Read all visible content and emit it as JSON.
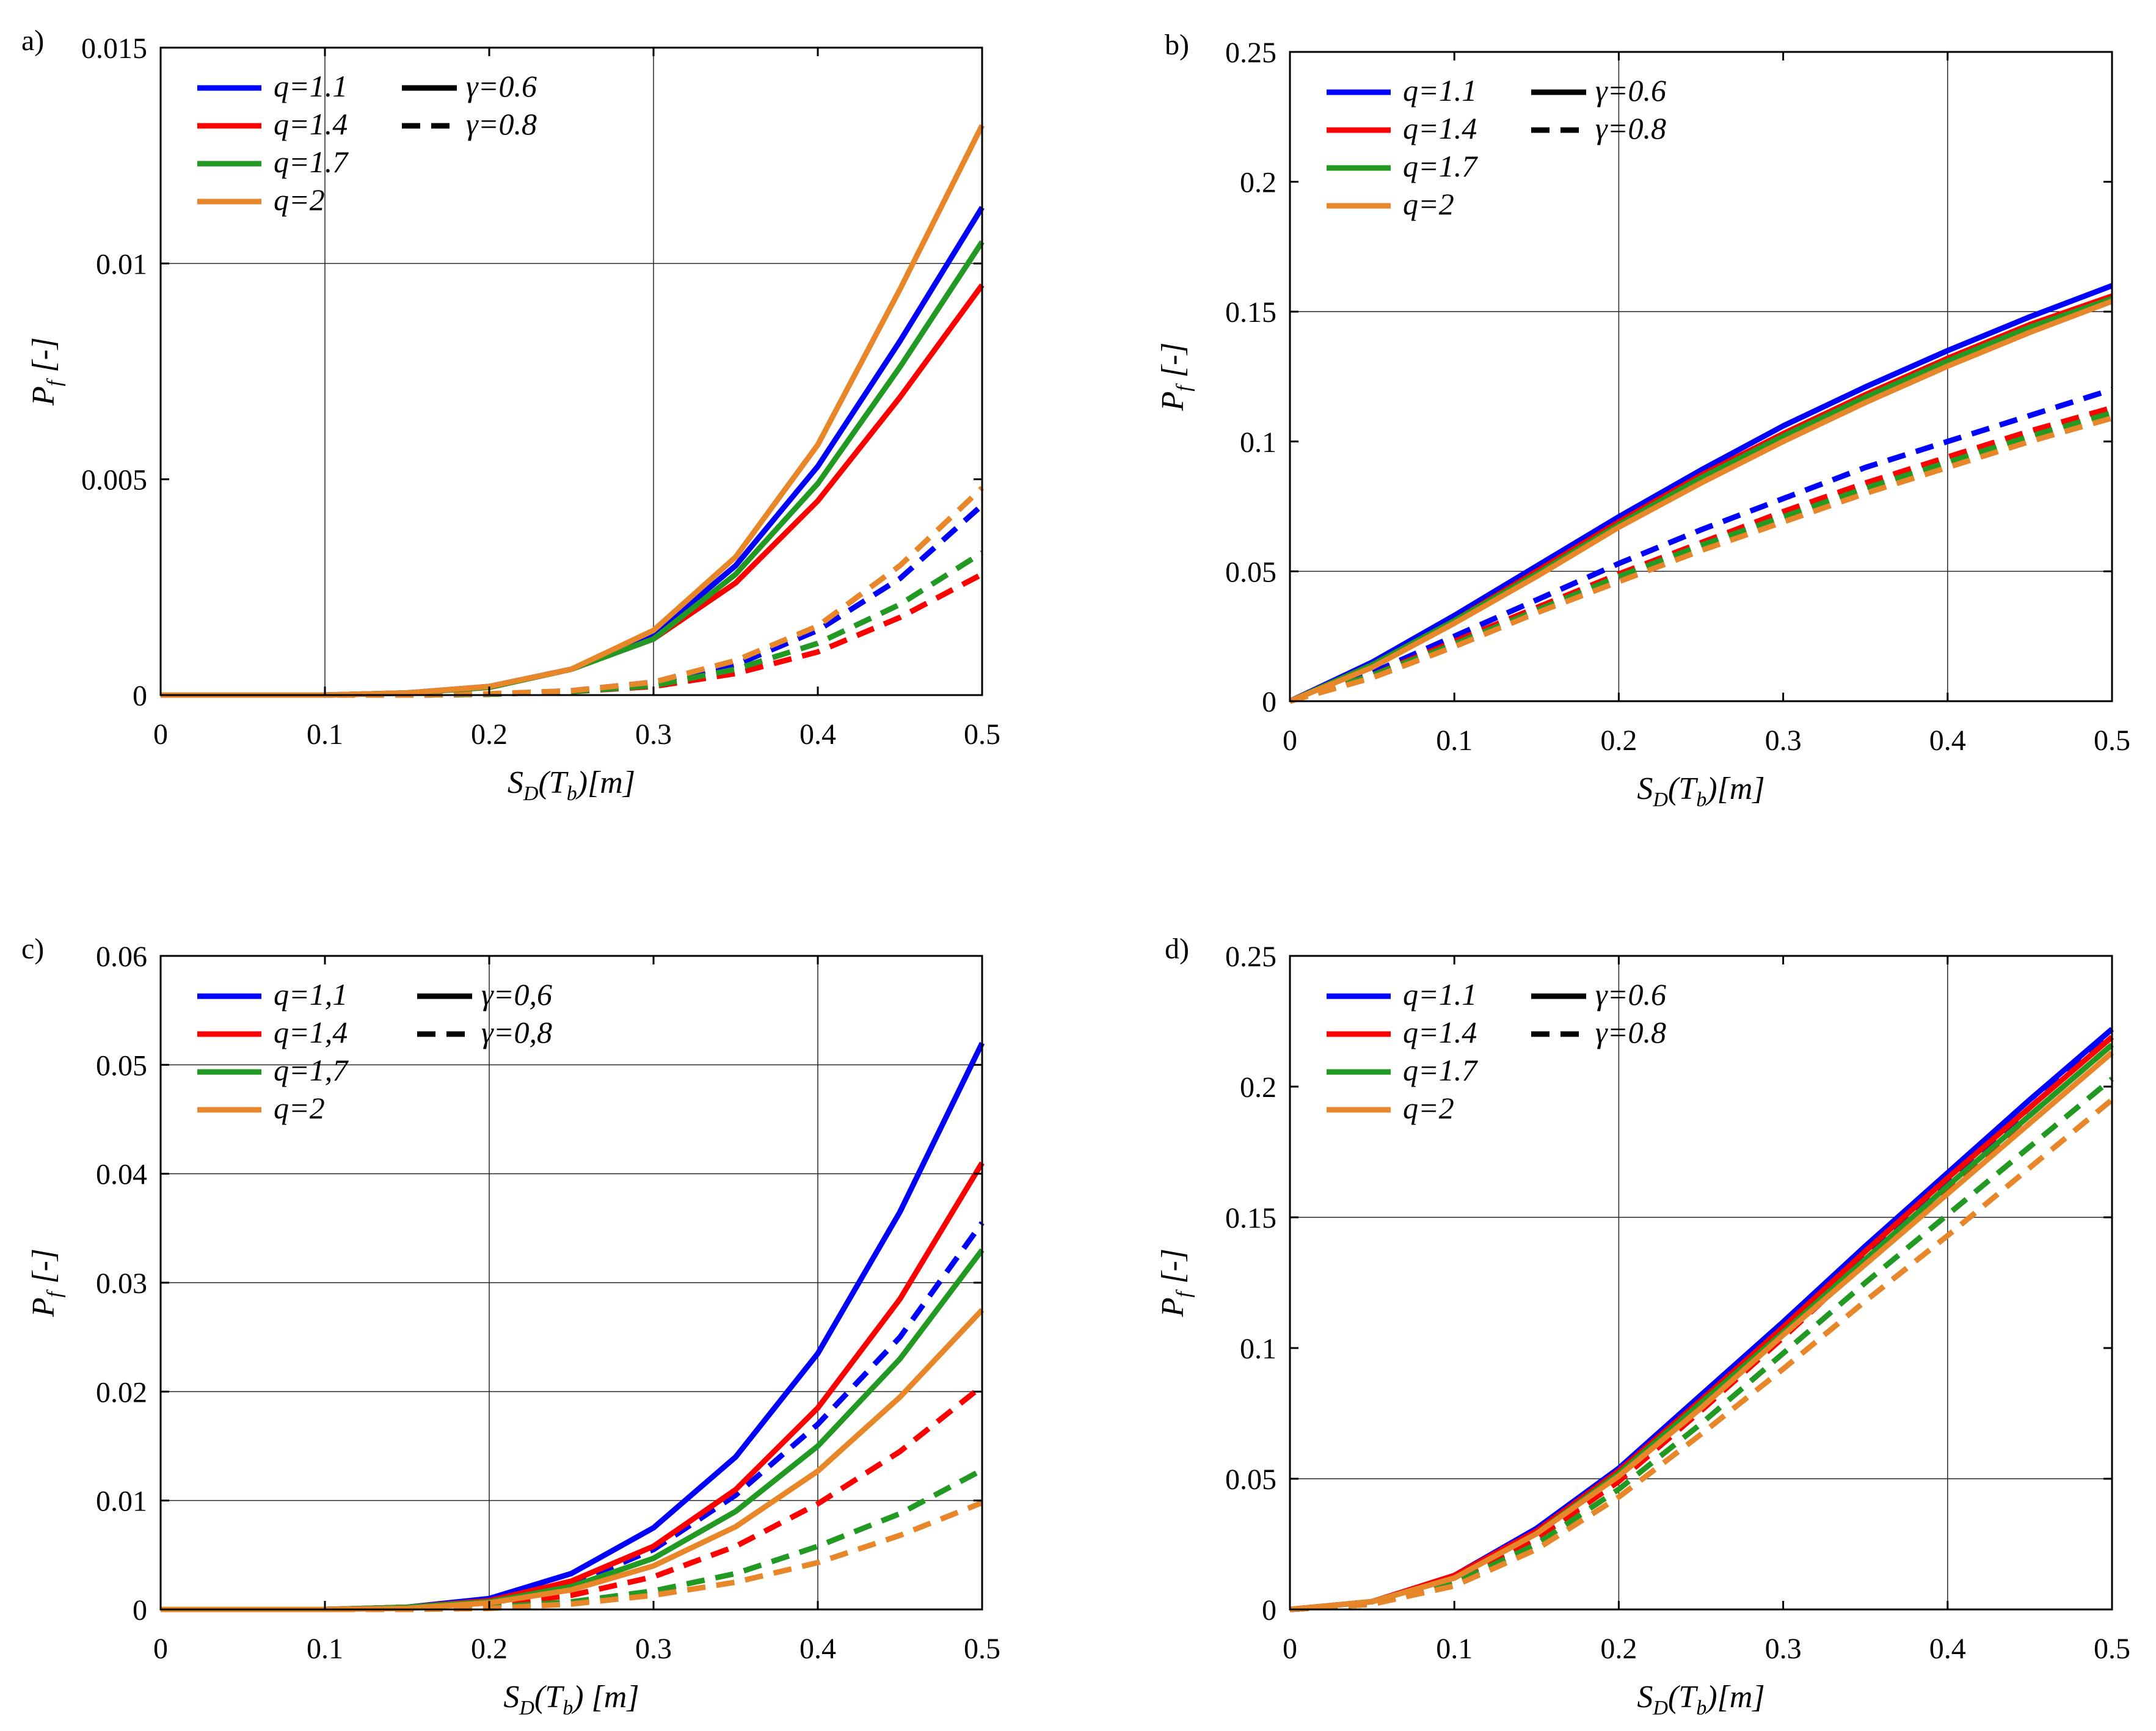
{
  "chart_data": [
    {
      "type": "line",
      "panel_label": "a)",
      "xlabel_main": "S",
      "xlabel_sub": "D",
      "xlabel_rest": "(T",
      "xlabel_sub2": "b",
      "xlabel_end": ")[m]",
      "ylabel_main": "P",
      "ylabel_sub": "f",
      "ylabel_end": "[-]",
      "xlim": [
        0,
        0.5
      ],
      "ylim": [
        0,
        0.015
      ],
      "xticks": [
        0,
        0.1,
        0.2,
        0.3,
        0.4,
        0.5
      ],
      "xtick_labels": [
        "0",
        "0.1",
        "0.2",
        "0.3",
        "0.4",
        "0.5"
      ],
      "yticks": [
        0,
        0.005,
        0.01,
        0.015
      ],
      "ytick_labels": [
        "0",
        "0.005",
        "0.01",
        "0.015"
      ],
      "xgrid": [
        0.1,
        0.3
      ],
      "ygrid": [
        0.01
      ],
      "legend_q": [
        "q=1.1",
        "q=1.4",
        "q=1.7",
        "q=2"
      ],
      "legend_g": [
        "γ=0.6",
        "γ=0.8"
      ],
      "x": [
        0,
        0.05,
        0.1,
        0.15,
        0.2,
        0.25,
        0.3,
        0.35,
        0.4,
        0.45,
        0.5
      ],
      "series": [
        {
          "name": "q=1.1 γ=0.6",
          "color": "#0000ff",
          "dash": false,
          "values": [
            0,
            0,
            0,
            5e-05,
            0.0002,
            0.0006,
            0.0014,
            0.003,
            0.0053,
            0.0082,
            0.0113
          ]
        },
        {
          "name": "q=1.4 γ=0.6",
          "color": "#ff0000",
          "dash": false,
          "values": [
            0,
            0,
            0,
            5e-05,
            0.00018,
            0.0006,
            0.0013,
            0.0026,
            0.0045,
            0.0069,
            0.0095
          ]
        },
        {
          "name": "q=1.7 γ=0.6",
          "color": "#229922",
          "dash": false,
          "values": [
            0,
            0,
            0,
            5e-05,
            0.00018,
            0.0006,
            0.0013,
            0.0028,
            0.0049,
            0.0076,
            0.0105
          ]
        },
        {
          "name": "q=2 γ=0.6",
          "color": "#e8862a",
          "dash": false,
          "values": [
            0,
            0,
            0,
            5e-05,
            0.0002,
            0.0006,
            0.0015,
            0.0032,
            0.0058,
            0.0094,
            0.0132
          ]
        },
        {
          "name": "q=1.1 γ=0.8",
          "color": "#0000ff",
          "dash": true,
          "values": [
            0,
            0,
            0,
            0,
            2e-05,
            0.0001,
            0.0003,
            0.0007,
            0.0015,
            0.0027,
            0.0044
          ]
        },
        {
          "name": "q=1.4 γ=0.8",
          "color": "#ff0000",
          "dash": true,
          "values": [
            0,
            0,
            0,
            0,
            2e-05,
            8e-05,
            0.0002,
            0.0005,
            0.001,
            0.0018,
            0.0028
          ]
        },
        {
          "name": "q=1.7 γ=0.8",
          "color": "#229922",
          "dash": true,
          "values": [
            0,
            0,
            0,
            0,
            2e-05,
            8e-05,
            0.00022,
            0.0006,
            0.0012,
            0.0021,
            0.0033
          ]
        },
        {
          "name": "q=2 γ=0.8",
          "color": "#e8862a",
          "dash": true,
          "values": [
            0,
            0,
            0,
            0,
            3e-05,
            0.0001,
            0.0003,
            0.0008,
            0.0016,
            0.003,
            0.0048
          ]
        }
      ]
    },
    {
      "type": "line",
      "panel_label": "b)",
      "xlabel_main": "S",
      "xlabel_sub": "D",
      "xlabel_rest": "(T",
      "xlabel_sub2": "b",
      "xlabel_end": ")[m]",
      "ylabel_main": "P",
      "ylabel_sub": "f",
      "ylabel_end": "[-]",
      "xlim": [
        0,
        0.5
      ],
      "ylim": [
        0,
        0.25
      ],
      "xticks": [
        0,
        0.1,
        0.2,
        0.3,
        0.4,
        0.5
      ],
      "xtick_labels": [
        "0",
        "0.1",
        "0.2",
        "0.3",
        "0.4",
        "0.5"
      ],
      "yticks": [
        0,
        0.05,
        0.1,
        0.15,
        0.2,
        0.25
      ],
      "ytick_labels": [
        "0",
        "0.05",
        "0.1",
        "0.15",
        "0.2",
        "0.25"
      ],
      "xgrid": [
        0.2,
        0.4
      ],
      "ygrid": [
        0.05,
        0.15
      ],
      "legend_q": [
        "q=1.1",
        "q=1.4",
        "q=1.7",
        "q=2"
      ],
      "legend_g": [
        "γ=0.6",
        "γ=0.8"
      ],
      "x": [
        0,
        0.05,
        0.1,
        0.15,
        0.2,
        0.25,
        0.3,
        0.35,
        0.4,
        0.45,
        0.5
      ],
      "series": [
        {
          "name": "q=1.1 γ=0.6",
          "color": "#0000ff",
          "dash": false,
          "values": [
            0,
            0.015,
            0.033,
            0.052,
            0.071,
            0.089,
            0.106,
            0.121,
            0.135,
            0.148,
            0.16
          ]
        },
        {
          "name": "q=1.4 γ=0.6",
          "color": "#ff0000",
          "dash": false,
          "values": [
            0,
            0.014,
            0.031,
            0.05,
            0.069,
            0.087,
            0.103,
            0.118,
            0.132,
            0.145,
            0.156
          ]
        },
        {
          "name": "q=1.7 γ=0.6",
          "color": "#229922",
          "dash": false,
          "values": [
            0,
            0.014,
            0.031,
            0.049,
            0.068,
            0.086,
            0.102,
            0.117,
            0.131,
            0.144,
            0.155
          ]
        },
        {
          "name": "q=2 γ=0.6",
          "color": "#e8862a",
          "dash": false,
          "values": [
            0,
            0.013,
            0.03,
            0.048,
            0.067,
            0.084,
            0.1,
            0.115,
            0.129,
            0.142,
            0.154
          ]
        },
        {
          "name": "q=1.1 γ=0.8",
          "color": "#0000ff",
          "dash": true,
          "values": [
            0,
            0.011,
            0.025,
            0.039,
            0.053,
            0.066,
            0.078,
            0.09,
            0.1,
            0.11,
            0.12
          ]
        },
        {
          "name": "q=1.4 γ=0.8",
          "color": "#ff0000",
          "dash": true,
          "values": [
            0,
            0.01,
            0.023,
            0.036,
            0.049,
            0.061,
            0.073,
            0.084,
            0.094,
            0.104,
            0.113
          ]
        },
        {
          "name": "q=1.7 γ=0.8",
          "color": "#229922",
          "dash": true,
          "values": [
            0,
            0.01,
            0.022,
            0.035,
            0.048,
            0.06,
            0.071,
            0.082,
            0.092,
            0.102,
            0.111
          ]
        },
        {
          "name": "q=2 γ=0.8",
          "color": "#e8862a",
          "dash": true,
          "values": [
            0,
            0.009,
            0.021,
            0.034,
            0.046,
            0.058,
            0.069,
            0.08,
            0.09,
            0.1,
            0.109
          ]
        }
      ]
    },
    {
      "type": "line",
      "panel_label": "c)",
      "xlabel_main": "S",
      "xlabel_sub": "D",
      "xlabel_rest": "(T",
      "xlabel_sub2": "b",
      "xlabel_end": ") [m]",
      "ylabel_main": "P",
      "ylabel_sub": "f",
      "ylabel_end": "[-]",
      "xlim": [
        0,
        0.5
      ],
      "ylim": [
        0,
        0.06
      ],
      "xticks": [
        0,
        0.1,
        0.2,
        0.3,
        0.4,
        0.5
      ],
      "xtick_labels": [
        "0",
        "0.1",
        "0.2",
        "0.3",
        "0.4",
        "0.5"
      ],
      "yticks": [
        0,
        0.01,
        0.02,
        0.03,
        0.04,
        0.05,
        0.06
      ],
      "ytick_labels": [
        "0",
        "0.01",
        "0.02",
        "0.03",
        "0.04",
        "0.05",
        "0.06"
      ],
      "xgrid": [
        0.2,
        0.4
      ],
      "ygrid": [
        0.01,
        0.02,
        0.03,
        0.04,
        0.05
      ],
      "legend_q": [
        "q=1,1",
        "q=1,4",
        "q=1,7",
        "q=2"
      ],
      "legend_g": [
        "γ=0,6",
        "γ=0,8"
      ],
      "x": [
        0,
        0.05,
        0.1,
        0.15,
        0.2,
        0.25,
        0.3,
        0.35,
        0.4,
        0.45,
        0.5
      ],
      "series": [
        {
          "name": "q=1,1 γ=0,6",
          "color": "#0000ff",
          "dash": false,
          "values": [
            0,
            0,
            0,
            0.0002,
            0.001,
            0.0033,
            0.0075,
            0.014,
            0.0235,
            0.0365,
            0.052
          ]
        },
        {
          "name": "q=1,4 γ=0,6",
          "color": "#ff0000",
          "dash": false,
          "values": [
            0,
            0,
            0,
            0.0002,
            0.0008,
            0.0026,
            0.0058,
            0.011,
            0.0185,
            0.0285,
            0.041
          ]
        },
        {
          "name": "q=1,7 γ=0,6",
          "color": "#229922",
          "dash": false,
          "values": [
            0,
            0,
            0,
            0.0002,
            0.0007,
            0.0021,
            0.0047,
            0.009,
            0.015,
            0.023,
            0.033
          ]
        },
        {
          "name": "q=2 γ=0,6",
          "color": "#e8862a",
          "dash": false,
          "values": [
            0,
            0,
            0,
            0.0001,
            0.0006,
            0.0018,
            0.004,
            0.0076,
            0.0127,
            0.0195,
            0.0275
          ]
        },
        {
          "name": "q=1,1 γ=0,8",
          "color": "#0000ff",
          "dash": true,
          "values": [
            0,
            0,
            0,
            0.0001,
            0.0007,
            0.0023,
            0.0055,
            0.0105,
            0.017,
            0.025,
            0.0355
          ]
        },
        {
          "name": "q=1,4 γ=0,8",
          "color": "#ff0000",
          "dash": true,
          "values": [
            0,
            0,
            0,
            0.0001,
            0.0004,
            0.0013,
            0.003,
            0.0058,
            0.0097,
            0.0145,
            0.0205
          ]
        },
        {
          "name": "q=1,7 γ=0,8",
          "color": "#229922",
          "dash": true,
          "values": [
            0,
            0,
            0,
            0,
            0.0002,
            0.0007,
            0.0017,
            0.0033,
            0.0058,
            0.0088,
            0.0128
          ]
        },
        {
          "name": "q=2 γ=0,8",
          "color": "#e8862a",
          "dash": true,
          "values": [
            0,
            0,
            0,
            0,
            0.0001,
            0.0005,
            0.0013,
            0.0025,
            0.0043,
            0.0068,
            0.0098
          ]
        }
      ]
    },
    {
      "type": "line",
      "panel_label": "d)",
      "xlabel_main": "S",
      "xlabel_sub": "D",
      "xlabel_rest": "(T",
      "xlabel_sub2": "b",
      "xlabel_end": ")[m]",
      "ylabel_main": "P",
      "ylabel_sub": "f",
      "ylabel_end": "[-]",
      "xlim": [
        0,
        0.5
      ],
      "ylim": [
        0,
        0.25
      ],
      "xticks": [
        0,
        0.1,
        0.2,
        0.3,
        0.4,
        0.5
      ],
      "xtick_labels": [
        "0",
        "0.1",
        "0.2",
        "0.3",
        "0.4",
        "0.5"
      ],
      "yticks": [
        0,
        0.05,
        0.1,
        0.15,
        0.2,
        0.25
      ],
      "ytick_labels": [
        "0",
        "0.05",
        "0.1",
        "0.15",
        "0.2",
        "0.25"
      ],
      "xgrid": [
        0.2,
        0.4
      ],
      "ygrid": [
        0.05,
        0.15
      ],
      "legend_q": [
        "q=1.1",
        "q=1.4",
        "q=1.7",
        "q=2"
      ],
      "legend_g": [
        "γ=0.6",
        "γ=0.8"
      ],
      "x": [
        0,
        0.05,
        0.1,
        0.15,
        0.2,
        0.25,
        0.3,
        0.35,
        0.4,
        0.45,
        0.5
      ],
      "series": [
        {
          "name": "q=1.1 γ=0.6",
          "color": "#0000ff",
          "dash": false,
          "values": [
            0,
            0.003,
            0.013,
            0.031,
            0.054,
            0.082,
            0.11,
            0.139,
            0.167,
            0.195,
            0.222
          ]
        },
        {
          "name": "q=1.4 γ=0.6",
          "color": "#ff0000",
          "dash": false,
          "values": [
            0,
            0.003,
            0.013,
            0.03,
            0.053,
            0.08,
            0.108,
            0.137,
            0.165,
            0.192,
            0.219
          ]
        },
        {
          "name": "q=1.7 γ=0.6",
          "color": "#229922",
          "dash": false,
          "values": [
            0,
            0.003,
            0.012,
            0.029,
            0.052,
            0.079,
            0.106,
            0.134,
            0.162,
            0.189,
            0.216
          ]
        },
        {
          "name": "q=2 γ=0.6",
          "color": "#e8862a",
          "dash": false,
          "values": [
            0,
            0.003,
            0.012,
            0.029,
            0.051,
            0.077,
            0.105,
            0.132,
            0.159,
            0.186,
            0.213
          ]
        },
        {
          "name": "q=1.1 γ=0.8",
          "color": "#0000ff",
          "dash": true,
          "values": [
            0,
            0.002,
            0.011,
            0.028,
            0.05,
            0.078,
            0.106,
            0.135,
            0.163,
            0.192,
            0.22
          ]
        },
        {
          "name": "q=1.4 γ=0.8",
          "color": "#ff0000",
          "dash": true,
          "values": [
            0,
            0.002,
            0.011,
            0.027,
            0.049,
            0.076,
            0.104,
            0.133,
            0.161,
            0.189,
            0.216
          ]
        },
        {
          "name": "q=1.7 γ=0.8",
          "color": "#229922",
          "dash": true,
          "values": [
            0,
            0.002,
            0.01,
            0.025,
            0.046,
            0.071,
            0.098,
            0.125,
            0.151,
            0.177,
            0.203
          ]
        },
        {
          "name": "q=2 γ=0.8",
          "color": "#e8862a",
          "dash": true,
          "values": [
            0,
            0.002,
            0.009,
            0.023,
            0.043,
            0.067,
            0.092,
            0.118,
            0.143,
            0.169,
            0.195
          ]
        }
      ]
    }
  ]
}
